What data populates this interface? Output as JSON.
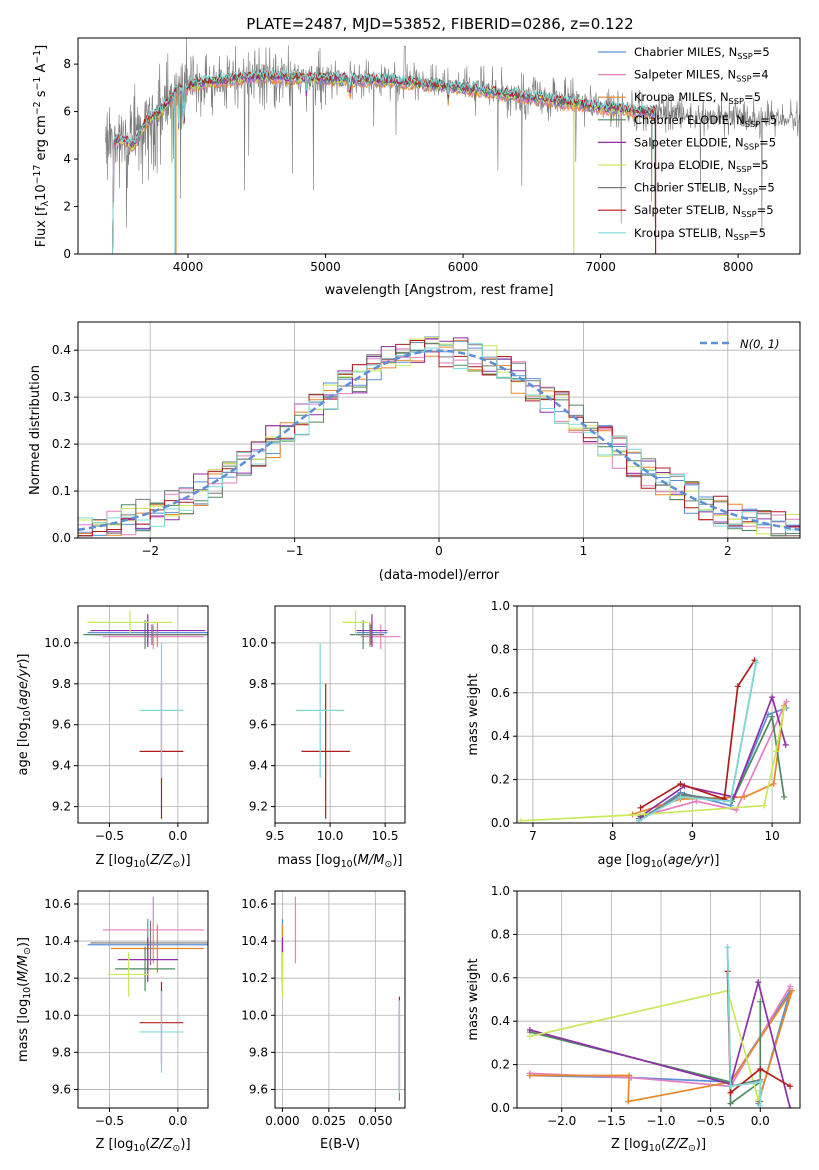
{
  "figure_title": "PLATE=2487, MJD=53852, FIBERID=0286, z=0.122",
  "colors": {
    "chabrier_miles": "#5b8fd6",
    "salpeter_miles": "#e67fbf",
    "kroupa_miles": "#e8872a",
    "chabrier_elodie": "#4f8a5f",
    "salpeter_elodie": "#8f2fa8",
    "kroupa_elodie": "#c9e85a",
    "chabrier_stelib": "#7a7a7a",
    "salpeter_stelib": "#b01c1c",
    "kroupa_stelib": "#7fd9d9",
    "normal_curve": "#5b8fd6"
  },
  "chart_data": [
    {
      "id": "spectrum",
      "type": "line",
      "title": "",
      "xlabel": "wavelength [Angstrom, rest frame]",
      "ylabel": "Flux [f_λ 10^-17 erg cm^-2 s^-1 A^-1]",
      "xlim": [
        3200,
        8450
      ],
      "ylim": [
        0,
        9.1
      ],
      "xticks": [
        4000,
        5000,
        6000,
        7000,
        8000
      ],
      "yticks": [
        0,
        2,
        4,
        6,
        8
      ],
      "legend_position": "top-right",
      "observed_series": "grey",
      "series": [
        {
          "name": "Chabrier MILES, N_SSP=5",
          "key": "chabrier_miles"
        },
        {
          "name": "Salpeter MILES, N_SSP=4",
          "key": "salpeter_miles"
        },
        {
          "name": "Kroupa MILES, N_SSP=5",
          "key": "kroupa_miles"
        },
        {
          "name": "Chabrier ELODIE, N_SSP=5",
          "key": "chabrier_elodie"
        },
        {
          "name": "Salpeter ELODIE, N_SSP=5",
          "key": "salpeter_elodie"
        },
        {
          "name": "Kroupa ELODIE, N_SSP=5",
          "key": "kroupa_elodie"
        },
        {
          "name": "Chabrier STELIB, N_SSP=5",
          "key": "chabrier_stelib"
        },
        {
          "name": "Salpeter STELIB, N_SSP=5",
          "key": "salpeter_stelib"
        },
        {
          "name": "Kroupa STELIB, N_SSP=5",
          "key": "kroupa_stelib"
        }
      ],
      "continuum": [
        [
          3400,
          4.4
        ],
        [
          3500,
          4.9
        ],
        [
          3600,
          4.6
        ],
        [
          3700,
          5.6
        ],
        [
          3800,
          6.0
        ],
        [
          3900,
          6.8
        ],
        [
          4000,
          7.1
        ],
        [
          4200,
          7.3
        ],
        [
          4500,
          7.5
        ],
        [
          5000,
          7.4
        ],
        [
          5500,
          7.3
        ],
        [
          6000,
          7.0
        ],
        [
          6500,
          6.6
        ],
        [
          7000,
          6.2
        ],
        [
          7500,
          5.9
        ],
        [
          8000,
          5.7
        ],
        [
          8450,
          5.7
        ]
      ],
      "fit_range": [
        3450,
        7400
      ]
    },
    {
      "id": "residuals",
      "type": "histogram",
      "title": "",
      "xlabel": "(data-model)/error",
      "ylabel": "Normed distribution",
      "xlim": [
        -2.5,
        2.5
      ],
      "ylim": [
        0,
        0.46
      ],
      "xticks": [
        -2,
        -1,
        0,
        1,
        2
      ],
      "yticks": [
        0.0,
        0.1,
        0.2,
        0.3,
        0.4
      ],
      "legend": "N(0, 1)",
      "legend_position": "top-right",
      "bin_width": 0.1,
      "curve": "standard normal density, mean 0, sigma 1"
    },
    {
      "id": "age_vs_Z",
      "type": "errorbar",
      "xlabel": "Z [log10(Z/Z⊙)]",
      "ylabel": "age [log10(age/yr)]",
      "xlim": [
        -0.73,
        0.22
      ],
      "ylim": [
        9.12,
        10.18
      ],
      "xticks": [
        -0.5,
        0.0
      ],
      "yticks": [
        9.2,
        9.4,
        9.6,
        9.8,
        10.0
      ],
      "points": [
        {
          "key": "chabrier_miles",
          "x": -0.22,
          "xerr": 0.44,
          "y": 10.05,
          "yerr": 0.05
        },
        {
          "key": "salpeter_miles",
          "x": -0.18,
          "xerr": 0.37,
          "y": 10.03,
          "yerr": 0.06
        },
        {
          "key": "kroupa_miles",
          "x": -0.15,
          "xerr": 0.34,
          "y": 10.04,
          "yerr": 0.06
        },
        {
          "key": "chabrier_elodie",
          "x": -0.24,
          "xerr": 0.45,
          "y": 10.04,
          "yerr": 0.07
        },
        {
          "key": "salpeter_elodie",
          "x": -0.22,
          "xerr": 0.42,
          "y": 10.06,
          "yerr": 0.08
        },
        {
          "key": "kroupa_elodie",
          "x": -0.35,
          "xerr": 0.31,
          "y": 10.1,
          "yerr": 0.06
        },
        {
          "key": "chabrier_stelib",
          "x": -0.19,
          "xerr": 0.42,
          "y": 10.04,
          "yerr": 0.05
        },
        {
          "key": "salpeter_stelib",
          "x": -0.12,
          "xerr": 0.16,
          "y": 9.47,
          "yerr": 0.33
        },
        {
          "key": "kroupa_stelib",
          "x": -0.12,
          "xerr": 0.16,
          "y": 9.67,
          "yerr": 0.33
        }
      ]
    },
    {
      "id": "age_vs_mass",
      "type": "errorbar",
      "xlabel": "mass [log10(M/M⊙)]",
      "ylabel": "",
      "xlim": [
        9.5,
        10.68
      ],
      "ylim": [
        9.12,
        10.18
      ],
      "xticks": [
        9.5,
        10.0,
        10.5
      ],
      "yticks": [
        9.2,
        9.4,
        9.6,
        9.8,
        10.0
      ],
      "points": [
        {
          "key": "chabrier_miles",
          "x": 10.38,
          "xerr": 0.14,
          "y": 10.05,
          "yerr": 0.05
        },
        {
          "key": "salpeter_miles",
          "x": 10.46,
          "xerr": 0.18,
          "y": 10.03,
          "yerr": 0.06
        },
        {
          "key": "kroupa_miles",
          "x": 10.36,
          "xerr": 0.13,
          "y": 10.04,
          "yerr": 0.06
        },
        {
          "key": "chabrier_elodie",
          "x": 10.3,
          "xerr": 0.12,
          "y": 10.04,
          "yerr": 0.07
        },
        {
          "key": "salpeter_elodie",
          "x": 10.38,
          "xerr": 0.14,
          "y": 10.06,
          "yerr": 0.08
        },
        {
          "key": "kroupa_elodie",
          "x": 10.23,
          "xerr": 0.12,
          "y": 10.1,
          "yerr": 0.06
        },
        {
          "key": "chabrier_stelib",
          "x": 10.37,
          "xerr": 0.12,
          "y": 10.04,
          "yerr": 0.05
        },
        {
          "key": "salpeter_stelib",
          "x": 9.96,
          "xerr": 0.22,
          "y": 9.47,
          "yerr": 0.33
        },
        {
          "key": "kroupa_stelib",
          "x": 9.91,
          "xerr": 0.22,
          "y": 9.67,
          "yerr": 0.33
        }
      ]
    },
    {
      "id": "weight_vs_age",
      "type": "line",
      "xlabel": "age [log10(age/yr)]",
      "ylabel": "mass weight",
      "xlim": [
        6.8,
        10.35
      ],
      "ylim": [
        0,
        1.0
      ],
      "xticks": [
        7,
        8,
        9,
        10
      ],
      "yticks": [
        0.0,
        0.2,
        0.4,
        0.6,
        0.8,
        1.0
      ],
      "series": [
        {
          "key": "chabrier_miles",
          "x": [
            8.33,
            8.85,
            9.48,
            9.95,
            10.18
          ],
          "y": [
            0.01,
            0.14,
            0.08,
            0.5,
            0.53
          ]
        },
        {
          "key": "salpeter_miles",
          "x": [
            8.35,
            9.05,
            9.55,
            10.18
          ],
          "y": [
            0.03,
            0.1,
            0.06,
            0.56
          ]
        },
        {
          "key": "kroupa_miles",
          "x": [
            8.25,
            8.85,
            9.65,
            10.02,
            10.15
          ],
          "y": [
            0.04,
            0.11,
            0.12,
            0.18,
            0.54
          ]
        },
        {
          "key": "chabrier_elodie",
          "x": [
            8.33,
            8.9,
            9.5,
            10.0,
            10.15
          ],
          "y": [
            0.02,
            0.13,
            0.1,
            0.49,
            0.12
          ]
        },
        {
          "key": "salpeter_elodie",
          "x": [
            8.35,
            8.9,
            9.52,
            10.0,
            10.17
          ],
          "y": [
            0.03,
            0.17,
            0.12,
            0.58,
            0.36
          ]
        },
        {
          "key": "kroupa_elodie",
          "x": [
            6.85,
            8.4,
            9.9,
            10.05,
            10.15
          ],
          "y": [
            0.01,
            0.04,
            0.08,
            0.33,
            0.53
          ]
        },
        {
          "key": "chabrier_stelib",
          "x": [
            8.33,
            8.85,
            9.48,
            9.8
          ],
          "y": [
            0.01,
            0.13,
            0.1,
            0.74
          ]
        },
        {
          "key": "salpeter_stelib",
          "x": [
            8.35,
            8.85,
            9.4,
            9.57,
            9.78
          ],
          "y": [
            0.07,
            0.18,
            0.11,
            0.63,
            0.75
          ]
        },
        {
          "key": "kroupa_stelib",
          "x": [
            8.33,
            8.85,
            9.48,
            9.8
          ],
          "y": [
            0.01,
            0.12,
            0.1,
            0.74
          ]
        }
      ]
    },
    {
      "id": "mass_vs_Z",
      "type": "errorbar",
      "xlabel": "Z [log10(Z/Z⊙)]",
      "ylabel": "mass [log10(M/M⊙)]",
      "xlim": [
        -0.73,
        0.22
      ],
      "ylim": [
        9.5,
        10.67
      ],
      "xticks": [
        -0.5,
        0.0
      ],
      "yticks": [
        9.6,
        9.8,
        10.0,
        10.2,
        10.4,
        10.6
      ],
      "points": [
        {
          "key": "chabrier_miles",
          "x": -0.22,
          "xerr": 0.44,
          "y": 10.38,
          "yerr": 0.14
        },
        {
          "key": "salpeter_miles",
          "x": -0.18,
          "xerr": 0.37,
          "y": 10.46,
          "yerr": 0.18
        },
        {
          "key": "kroupa_miles",
          "x": -0.15,
          "xerr": 0.34,
          "y": 10.36,
          "yerr": 0.13
        },
        {
          "key": "chabrier_elodie",
          "x": -0.24,
          "xerr": 0.22,
          "y": 10.25,
          "yerr": 0.12
        },
        {
          "key": "salpeter_elodie",
          "x": -0.22,
          "xerr": 0.22,
          "y": 10.3,
          "yerr": 0.12
        },
        {
          "key": "kroupa_elodie",
          "x": -0.36,
          "xerr": 0.15,
          "y": 10.22,
          "yerr": 0.12
        },
        {
          "key": "chabrier_stelib",
          "x": -0.2,
          "xerr": 0.44,
          "y": 10.39,
          "yerr": 0.12
        },
        {
          "key": "salpeter_stelib",
          "x": -0.12,
          "xerr": 0.16,
          "y": 9.96,
          "yerr": 0.22
        },
        {
          "key": "kroupa_stelib",
          "x": -0.12,
          "xerr": 0.16,
          "y": 9.91,
          "yerr": 0.22
        }
      ]
    },
    {
      "id": "mass_vs_ebv",
      "type": "errorbar",
      "xlabel": "E(B-V)",
      "ylabel": "",
      "xlim": [
        -0.004,
        0.066
      ],
      "ylim": [
        9.5,
        10.67
      ],
      "xticks": [
        0.0,
        0.025,
        0.05
      ],
      "yticks": [
        9.6,
        9.8,
        10.0,
        10.2,
        10.4,
        10.6
      ],
      "points": [
        {
          "key": "chabrier_miles",
          "x": 0.0,
          "xerr": 0,
          "y": 10.38,
          "yerr": 0.14
        },
        {
          "key": "salpeter_miles",
          "x": 0.007,
          "xerr": 0,
          "y": 10.46,
          "yerr": 0.18
        },
        {
          "key": "kroupa_miles",
          "x": 0.0,
          "xerr": 0,
          "y": 10.36,
          "yerr": 0.13
        },
        {
          "key": "chabrier_elodie",
          "x": 0.0,
          "xerr": 0,
          "y": 10.25,
          "yerr": 0.12
        },
        {
          "key": "salpeter_elodie",
          "x": 0.0,
          "xerr": 0,
          "y": 10.3,
          "yerr": 0.12
        },
        {
          "key": "kroupa_elodie",
          "x": 0.0,
          "xerr": 0,
          "y": 10.22,
          "yerr": 0.12
        },
        {
          "key": "chabrier_stelib",
          "x": 0.063,
          "xerr": 0,
          "y": 9.8,
          "yerr": 0.26
        },
        {
          "key": "salpeter_stelib",
          "x": 0.063,
          "xerr": 0,
          "y": 9.85,
          "yerr": 0.25
        },
        {
          "key": "kroupa_stelib",
          "x": 0.063,
          "xerr": 0,
          "y": 9.83,
          "yerr": 0.25
        }
      ]
    },
    {
      "id": "weight_vs_Z",
      "type": "line",
      "xlabel": "Z [log10(Z/Z⊙)]",
      "ylabel": "mass weight",
      "xlim": [
        -2.45,
        0.4
      ],
      "ylim": [
        0,
        1.0
      ],
      "xticks": [
        -2.0,
        -1.5,
        -1.0,
        -0.5,
        0.0
      ],
      "yticks": [
        0.0,
        0.2,
        0.4,
        0.6,
        0.8,
        1.0
      ],
      "series": [
        {
          "key": "chabrier_miles",
          "x": [
            -2.32,
            -1.3,
            -0.3,
            0.3,
            -0.02
          ],
          "y": [
            0.15,
            0.14,
            0.12,
            0.54,
            0.02
          ]
        },
        {
          "key": "salpeter_miles",
          "x": [
            -2.32,
            -1.3,
            -0.3,
            0.3
          ],
          "y": [
            0.16,
            0.14,
            0.1,
            0.56
          ]
        },
        {
          "key": "kroupa_miles",
          "x": [
            -2.32,
            -1.32,
            -1.33,
            -0.3,
            0.32,
            -0.02
          ],
          "y": [
            0.15,
            0.15,
            0.03,
            0.12,
            0.54,
            0.03
          ]
        },
        {
          "key": "chabrier_elodie",
          "x": [
            -2.32,
            -0.3,
            -0.3,
            0.0,
            0.0
          ],
          "y": [
            0.35,
            0.12,
            0.02,
            0.12,
            0.49
          ]
        },
        {
          "key": "salpeter_elodie",
          "x": [
            -2.32,
            -0.3,
            -0.02,
            0.3
          ],
          "y": [
            0.36,
            0.11,
            0.58,
            0.0
          ]
        },
        {
          "key": "kroupa_elodie",
          "x": [
            -2.32,
            -0.33,
            -0.02,
            0.0
          ],
          "y": [
            0.33,
            0.54,
            0.04,
            0.08
          ]
        },
        {
          "key": "chabrier_stelib",
          "x": [
            -0.33,
            -0.3,
            0.0,
            0.0
          ],
          "y": [
            0.74,
            0.1,
            0.13,
            0.03
          ]
        },
        {
          "key": "salpeter_stelib",
          "x": [
            -0.33,
            -0.3,
            0.0,
            0.3
          ],
          "y": [
            0.63,
            0.07,
            0.18,
            0.1
          ]
        },
        {
          "key": "kroupa_stelib",
          "x": [
            -0.33,
            -0.3,
            0.0,
            0.0
          ],
          "y": [
            0.74,
            0.1,
            0.12,
            0.01
          ]
        }
      ]
    }
  ]
}
